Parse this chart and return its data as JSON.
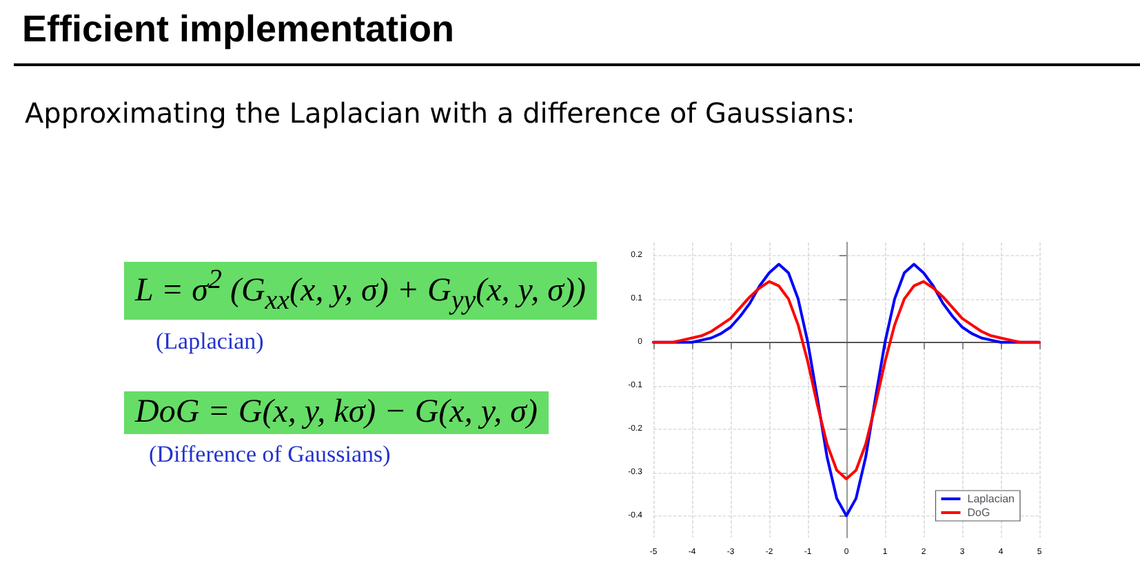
{
  "chart_data": {
    "type": "line",
    "title": "Efficient implementation",
    "subtitle": "Approximating the Laplacian with a difference of Gaussians:",
    "annotations": [
      "L = σ$^{2}$ (G$_{xx}$(x, y, σ) + G$_{yy}$(x, y, σ))",
      "(Laplacian)",
      "DoG = G(x, y, kσ) − G(x, y, σ)",
      "(Difference of Gaussians)"
    ],
    "x": [
      -5,
      -4.75,
      -4.5,
      -4.25,
      -4,
      -3.75,
      -3.5,
      -3.25,
      -3,
      -2.75,
      -2.5,
      -2.25,
      -2,
      -1.75,
      -1.5,
      -1.25,
      -1,
      -0.75,
      -0.5,
      -0.25,
      0,
      0.25,
      0.5,
      0.75,
      1,
      1.25,
      1.5,
      1.75,
      2,
      2.25,
      2.5,
      2.75,
      3,
      3.25,
      3.5,
      3.75,
      4,
      4.25,
      4.5,
      4.75,
      5
    ],
    "series": [
      {
        "name": "Laplacian",
        "color": "#0000ff",
        "values": [
          0,
          0,
          0,
          0,
          0,
          0.005,
          0.01,
          0.02,
          0.035,
          0.06,
          0.09,
          0.13,
          0.16,
          0.18,
          0.16,
          0.1,
          0,
          -0.13,
          -0.265,
          -0.36,
          -0.4,
          -0.36,
          -0.265,
          -0.13,
          0,
          0.1,
          0.16,
          0.18,
          0.16,
          0.13,
          0.09,
          0.06,
          0.035,
          0.02,
          0.01,
          0.005,
          0,
          0,
          0,
          0,
          0
        ]
      },
      {
        "name": "DoG",
        "color": "#ff0000",
        "values": [
          0,
          0,
          0,
          0.005,
          0.01,
          0.015,
          0.025,
          0.04,
          0.055,
          0.08,
          0.105,
          0.125,
          0.14,
          0.13,
          0.1,
          0.04,
          -0.045,
          -0.145,
          -0.235,
          -0.295,
          -0.315,
          -0.295,
          -0.235,
          -0.145,
          -0.045,
          0.04,
          0.1,
          0.13,
          0.14,
          0.125,
          0.105,
          0.08,
          0.055,
          0.04,
          0.025,
          0.015,
          0.01,
          0.005,
          0,
          0,
          0
        ]
      }
    ],
    "xlim": [
      -5,
      5
    ],
    "xticks": [
      -5,
      -4,
      -3,
      -2,
      -1,
      0,
      1,
      2,
      3,
      4,
      5
    ],
    "ylim": [
      -0.45,
      0.23
    ],
    "yticks": [
      -0.4,
      -0.3,
      -0.2,
      -0.1,
      0,
      0.1,
      0.2
    ],
    "ref_lines": [
      {
        "axis": "x",
        "value": 0,
        "color": "#999999"
      },
      {
        "axis": "y",
        "value": 0,
        "color": "#555555"
      }
    ],
    "grid": true,
    "legend": "bottom right",
    "marker": "none",
    "line_style": "solid"
  }
}
